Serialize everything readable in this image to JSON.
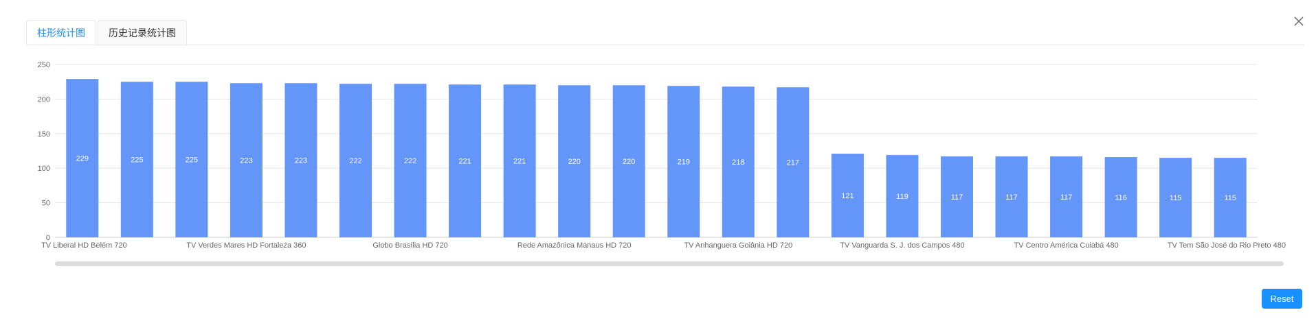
{
  "tabs": [
    {
      "label": "柱形统计图",
      "active": true
    },
    {
      "label": "历史记录统计图",
      "active": false
    }
  ],
  "buttons": {
    "reset_label": "Reset"
  },
  "icons": {
    "close": "close-icon"
  },
  "colors": {
    "bar": "#6495f9",
    "accent": "#1890ff",
    "grid": "#e6e6e6",
    "label": "#ffffff"
  },
  "chart_data": {
    "type": "bar",
    "categories": [
      "TV Liberal HD Belém 720",
      "",
      "",
      "TV Verdes Mares HD Fortaleza 360",
      "",
      "",
      "Globo Brasília HD 720",
      "",
      "",
      "Rede Amazônica Manaus HD 720",
      "",
      "",
      "TV Anhanguera Goiânia HD 720",
      "",
      "",
      "TV Vanguarda S. J. dos Campos 480",
      "",
      "",
      "TV Centro América Cuiabá 480",
      "",
      "",
      "TV Tem São José do Rio Preto 480"
    ],
    "values": [
      229,
      225,
      225,
      223,
      223,
      222,
      222,
      221,
      221,
      220,
      220,
      219,
      218,
      217,
      121,
      119,
      117,
      117,
      117,
      116,
      115,
      115
    ],
    "ylim": [
      0,
      250
    ],
    "yticks": [
      "0",
      "50",
      "100",
      "150",
      "200",
      "250"
    ],
    "grid": true,
    "data_labels": true,
    "zoom_slider": true
  }
}
